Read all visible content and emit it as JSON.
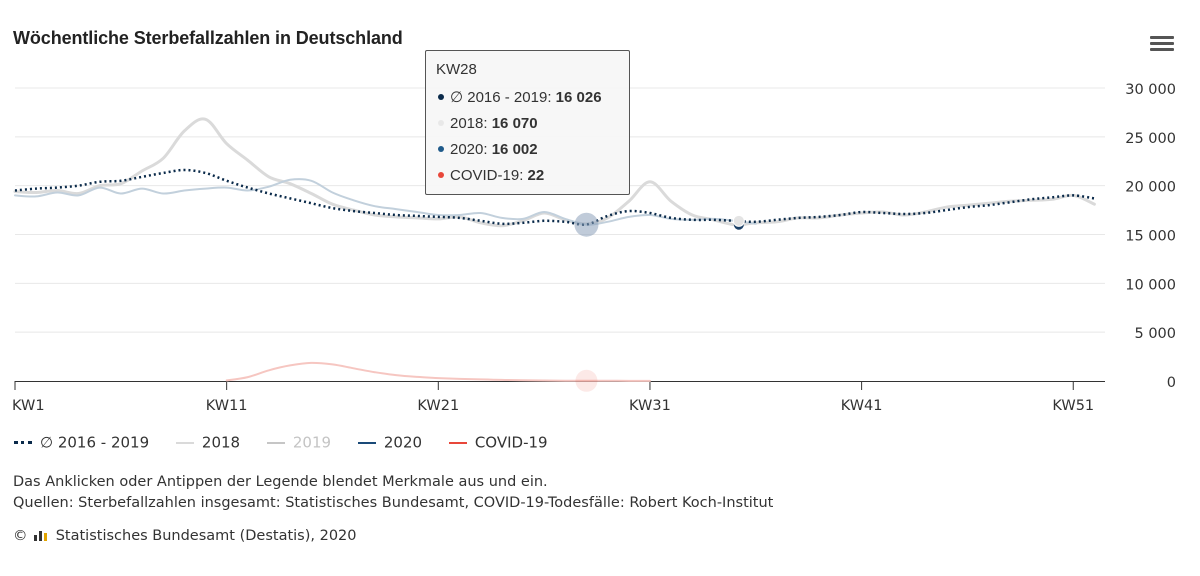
{
  "title": "Wöchentliche Sterbefallzahlen in Deutschland",
  "menu_icon": "hamburger-menu-icon",
  "tooltip": {
    "header": "KW28",
    "rows": [
      {
        "label": "∅ 2016 - 2019",
        "value": "16 026",
        "color": "#0a2a4a"
      },
      {
        "label": "2018",
        "value": "16 070",
        "color": "#e8e8e8"
      },
      {
        "label": "2020",
        "value": "16 002",
        "color": "#1f5a8a"
      },
      {
        "label": "COVID-19",
        "value": "22",
        "color": "#e8473a"
      }
    ]
  },
  "legend": [
    {
      "label": "∅ 2016 - 2019",
      "style": "dotted",
      "color": "#0a2a4a",
      "visible": true
    },
    {
      "label": "2018",
      "style": "solid",
      "color": "#dadada",
      "visible": true
    },
    {
      "label": "2019",
      "style": "solid",
      "color": "#c6c6c6",
      "visible": false
    },
    {
      "label": "2020",
      "style": "solid",
      "color": "#1a4a78",
      "visible": true
    },
    {
      "label": "COVID-19",
      "style": "solid",
      "color": "#e8473a",
      "visible": true
    }
  ],
  "notes": {
    "line1": "Das Anklicken oder Antippen der Legende blendet Merkmale aus und ein.",
    "line2": "Quellen: Sterbefallzahlen insgesamt: Statistisches Bundesamt, COVID-19-Todesfälle: Robert Koch-Institut"
  },
  "footer": {
    "copyright": "©",
    "text": "Statistisches Bundesamt (Destatis), 2020"
  },
  "chart_data": {
    "type": "line",
    "title": "Wöchentliche Sterbefallzahlen in Deutschland",
    "xlabel": "",
    "ylabel": "",
    "x_tick_labels": [
      "KW1",
      "KW11",
      "KW21",
      "KW31",
      "KW41",
      "KW51"
    ],
    "x_tick_weeks": [
      1,
      11,
      21,
      31,
      41,
      51
    ],
    "y_ticks": [
      0,
      5000,
      10000,
      15000,
      20000,
      25000,
      30000
    ],
    "y_tick_labels": [
      "0",
      "5 000",
      "10 000",
      "15 000",
      "20 000",
      "25 000",
      "30 000"
    ],
    "ylim": [
      0,
      30000
    ],
    "xlim": [
      1,
      52.5
    ],
    "grid": true,
    "legend_position": "bottom",
    "highlighted_week": 28,
    "series": [
      {
        "name": "∅ 2016 - 2019",
        "color": "#0a2a4a",
        "style": "dotted",
        "x": [
          1,
          2,
          3,
          4,
          5,
          6,
          7,
          8,
          9,
          10,
          11,
          12,
          13,
          14,
          15,
          16,
          17,
          18,
          19,
          20,
          21,
          22,
          23,
          24,
          25,
          26,
          27,
          28,
          29,
          30,
          31,
          32,
          33,
          34,
          35,
          36,
          37,
          38,
          39,
          40,
          41,
          42,
          43,
          44,
          45,
          46,
          47,
          48,
          49,
          50,
          51,
          52
        ],
        "values": [
          19500,
          19700,
          19800,
          20000,
          20400,
          20500,
          20900,
          21300,
          21600,
          21300,
          20500,
          19800,
          19200,
          18700,
          18200,
          17700,
          17400,
          17200,
          17000,
          16900,
          16800,
          16700,
          16400,
          16100,
          16200,
          16400,
          16300,
          16026,
          16900,
          17400,
          17200,
          16700,
          16500,
          16500,
          16400,
          16300,
          16500,
          16700,
          16800,
          17000,
          17300,
          17200,
          17100,
          17200,
          17500,
          17800,
          18000,
          18300,
          18600,
          18800,
          19000,
          18700
        ]
      },
      {
        "name": "2018",
        "color": "#dadada",
        "style": "solid",
        "x": [
          1,
          2,
          3,
          4,
          5,
          6,
          7,
          8,
          9,
          10,
          11,
          12,
          13,
          14,
          15,
          16,
          17,
          18,
          19,
          20,
          21,
          22,
          23,
          24,
          25,
          26,
          27,
          28,
          29,
          30,
          31,
          32,
          33,
          34,
          35,
          36,
          37,
          38,
          39,
          40,
          41,
          42,
          43,
          44,
          45,
          46,
          47,
          48,
          49,
          50,
          51,
          52
        ],
        "values": [
          19400,
          19300,
          19500,
          19200,
          20000,
          20200,
          21500,
          22800,
          25600,
          26800,
          24300,
          22600,
          20900,
          20200,
          19200,
          18100,
          17500,
          17000,
          16800,
          16700,
          16600,
          16800,
          16200,
          15900,
          16400,
          17200,
          16500,
          16070,
          16700,
          18400,
          20400,
          18400,
          17000,
          16500,
          16000,
          16200,
          16300,
          16700,
          16700,
          17000,
          17200,
          17300,
          17000,
          17300,
          17800,
          18000,
          18200,
          18400,
          18500,
          18600,
          19000,
          18100
        ]
      },
      {
        "name": "2020",
        "color": "#c2d0dc",
        "style": "solid",
        "x": [
          1,
          2,
          3,
          4,
          5,
          6,
          7,
          8,
          9,
          10,
          11,
          12,
          13,
          14,
          15,
          16,
          17,
          18,
          19,
          20,
          21,
          22,
          23,
          24,
          25,
          26,
          27,
          28,
          29,
          30,
          31,
          32,
          33,
          34,
          35,
          36
        ],
        "values": [
          19000,
          18900,
          19300,
          19000,
          19800,
          19200,
          19700,
          19200,
          19500,
          19700,
          19800,
          19500,
          19900,
          20600,
          20500,
          19300,
          18500,
          17900,
          17600,
          17300,
          17000,
          17000,
          17200,
          16700,
          16600,
          17300,
          16600,
          16002,
          16300,
          16800,
          17000,
          16600,
          16500,
          16600,
          16400,
          16100
        ]
      },
      {
        "name": "COVID-19",
        "color": "#f6c6c1",
        "style": "solid",
        "x": [
          11,
          12,
          13,
          14,
          15,
          16,
          17,
          18,
          19,
          20,
          21,
          22,
          23,
          24,
          25,
          26,
          27,
          28,
          29,
          30,
          31
        ],
        "values": [
          60,
          400,
          1100,
          1600,
          1850,
          1700,
          1300,
          900,
          600,
          420,
          300,
          220,
          160,
          110,
          80,
          50,
          35,
          22,
          20,
          15,
          10
        ]
      }
    ],
    "hover_values_kw28": {
      "∅ 2016 - 2019": 16026,
      "2018": 16070,
      "2020": 16002,
      "COVID-19": 22
    }
  }
}
